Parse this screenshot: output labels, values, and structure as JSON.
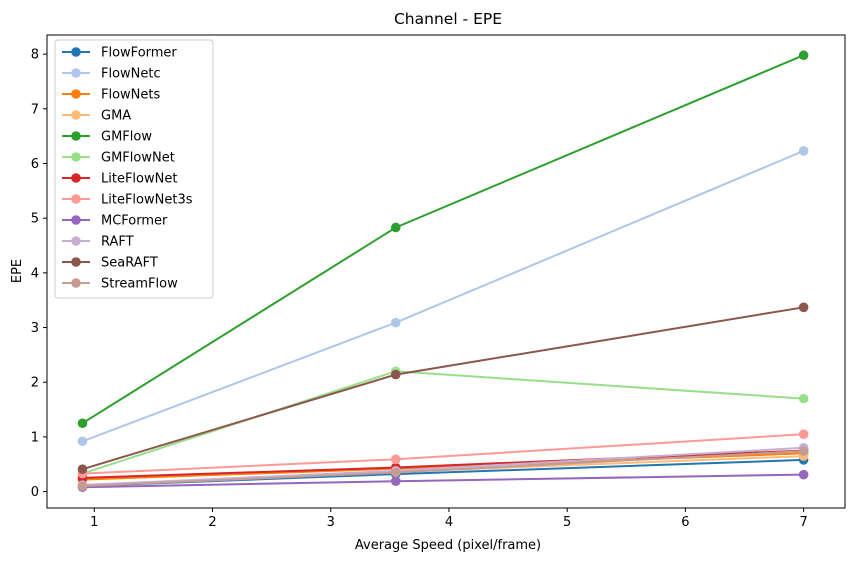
{
  "chart_data": {
    "type": "line",
    "title": "Channel - EPE",
    "xlabel": "Average Speed (pixel/frame)",
    "ylabel": "EPE",
    "x": [
      0.9,
      3.55,
      7.0
    ],
    "xlim": [
      0.6,
      7.35
    ],
    "ylim": [
      -0.3,
      8.35
    ],
    "xticks": [
      1,
      2,
      3,
      4,
      5,
      6,
      7
    ],
    "yticks": [
      0,
      1,
      2,
      3,
      4,
      5,
      6,
      7,
      8
    ],
    "grid": false,
    "legend_position": "top-left",
    "series": [
      {
        "name": "FlowFormer",
        "color": "#1f77b4",
        "values": [
          0.1,
          0.32,
          0.58
        ]
      },
      {
        "name": "FlowNetc",
        "color": "#aec7e8",
        "values": [
          0.92,
          3.09,
          6.23
        ]
      },
      {
        "name": "FlowNets",
        "color": "#ff7f0e",
        "values": [
          0.22,
          0.42,
          0.7
        ]
      },
      {
        "name": "GMA",
        "color": "#ffbb78",
        "values": [
          0.12,
          0.36,
          0.65
        ]
      },
      {
        "name": "GMFlow",
        "color": "#2ca02c",
        "values": [
          1.25,
          4.83,
          7.98
        ]
      },
      {
        "name": "GMFlowNet",
        "color": "#98df8a",
        "values": [
          0.33,
          2.2,
          1.7
        ]
      },
      {
        "name": "LiteFlowNet",
        "color": "#d62728",
        "values": [
          0.25,
          0.44,
          0.75
        ]
      },
      {
        "name": "LiteFlowNet3s",
        "color": "#ff9896",
        "values": [
          0.33,
          0.59,
          1.05
        ]
      },
      {
        "name": "MCFormer",
        "color": "#9467bd",
        "values": [
          0.08,
          0.19,
          0.31
        ]
      },
      {
        "name": "RAFT",
        "color": "#c5b0d5",
        "values": [
          0.12,
          0.38,
          0.8
        ]
      },
      {
        "name": "SeaRAFT",
        "color": "#8c564b",
        "values": [
          0.41,
          2.14,
          3.37
        ]
      },
      {
        "name": "StreamFlow",
        "color": "#c49c94",
        "values": [
          0.1,
          0.35,
          0.74
        ]
      }
    ]
  }
}
